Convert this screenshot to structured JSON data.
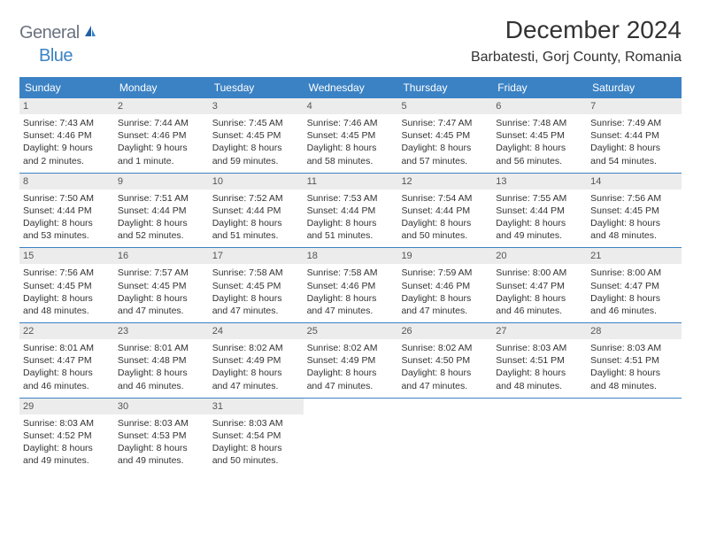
{
  "brand": {
    "part1": "General",
    "part2": "Blue"
  },
  "title": "December 2024",
  "location": "Barbatesti, Gorj County, Romania",
  "colors": {
    "header_bg": "#3b82c4",
    "header_text": "#ffffff",
    "daynum_bg": "#ececec",
    "daynum_text": "#555555",
    "body_text": "#333333",
    "rule": "#3b82c4",
    "brand_gray": "#6b7280",
    "brand_blue": "#3b82c4"
  },
  "day_headers": [
    "Sunday",
    "Monday",
    "Tuesday",
    "Wednesday",
    "Thursday",
    "Friday",
    "Saturday"
  ],
  "weeks": [
    [
      {
        "n": "1",
        "sr": "Sunrise: 7:43 AM",
        "ss": "Sunset: 4:46 PM",
        "d1": "Daylight: 9 hours",
        "d2": "and 2 minutes."
      },
      {
        "n": "2",
        "sr": "Sunrise: 7:44 AM",
        "ss": "Sunset: 4:46 PM",
        "d1": "Daylight: 9 hours",
        "d2": "and 1 minute."
      },
      {
        "n": "3",
        "sr": "Sunrise: 7:45 AM",
        "ss": "Sunset: 4:45 PM",
        "d1": "Daylight: 8 hours",
        "d2": "and 59 minutes."
      },
      {
        "n": "4",
        "sr": "Sunrise: 7:46 AM",
        "ss": "Sunset: 4:45 PM",
        "d1": "Daylight: 8 hours",
        "d2": "and 58 minutes."
      },
      {
        "n": "5",
        "sr": "Sunrise: 7:47 AM",
        "ss": "Sunset: 4:45 PM",
        "d1": "Daylight: 8 hours",
        "d2": "and 57 minutes."
      },
      {
        "n": "6",
        "sr": "Sunrise: 7:48 AM",
        "ss": "Sunset: 4:45 PM",
        "d1": "Daylight: 8 hours",
        "d2": "and 56 minutes."
      },
      {
        "n": "7",
        "sr": "Sunrise: 7:49 AM",
        "ss": "Sunset: 4:44 PM",
        "d1": "Daylight: 8 hours",
        "d2": "and 54 minutes."
      }
    ],
    [
      {
        "n": "8",
        "sr": "Sunrise: 7:50 AM",
        "ss": "Sunset: 4:44 PM",
        "d1": "Daylight: 8 hours",
        "d2": "and 53 minutes."
      },
      {
        "n": "9",
        "sr": "Sunrise: 7:51 AM",
        "ss": "Sunset: 4:44 PM",
        "d1": "Daylight: 8 hours",
        "d2": "and 52 minutes."
      },
      {
        "n": "10",
        "sr": "Sunrise: 7:52 AM",
        "ss": "Sunset: 4:44 PM",
        "d1": "Daylight: 8 hours",
        "d2": "and 51 minutes."
      },
      {
        "n": "11",
        "sr": "Sunrise: 7:53 AM",
        "ss": "Sunset: 4:44 PM",
        "d1": "Daylight: 8 hours",
        "d2": "and 51 minutes."
      },
      {
        "n": "12",
        "sr": "Sunrise: 7:54 AM",
        "ss": "Sunset: 4:44 PM",
        "d1": "Daylight: 8 hours",
        "d2": "and 50 minutes."
      },
      {
        "n": "13",
        "sr": "Sunrise: 7:55 AM",
        "ss": "Sunset: 4:44 PM",
        "d1": "Daylight: 8 hours",
        "d2": "and 49 minutes."
      },
      {
        "n": "14",
        "sr": "Sunrise: 7:56 AM",
        "ss": "Sunset: 4:45 PM",
        "d1": "Daylight: 8 hours",
        "d2": "and 48 minutes."
      }
    ],
    [
      {
        "n": "15",
        "sr": "Sunrise: 7:56 AM",
        "ss": "Sunset: 4:45 PM",
        "d1": "Daylight: 8 hours",
        "d2": "and 48 minutes."
      },
      {
        "n": "16",
        "sr": "Sunrise: 7:57 AM",
        "ss": "Sunset: 4:45 PM",
        "d1": "Daylight: 8 hours",
        "d2": "and 47 minutes."
      },
      {
        "n": "17",
        "sr": "Sunrise: 7:58 AM",
        "ss": "Sunset: 4:45 PM",
        "d1": "Daylight: 8 hours",
        "d2": "and 47 minutes."
      },
      {
        "n": "18",
        "sr": "Sunrise: 7:58 AM",
        "ss": "Sunset: 4:46 PM",
        "d1": "Daylight: 8 hours",
        "d2": "and 47 minutes."
      },
      {
        "n": "19",
        "sr": "Sunrise: 7:59 AM",
        "ss": "Sunset: 4:46 PM",
        "d1": "Daylight: 8 hours",
        "d2": "and 47 minutes."
      },
      {
        "n": "20",
        "sr": "Sunrise: 8:00 AM",
        "ss": "Sunset: 4:47 PM",
        "d1": "Daylight: 8 hours",
        "d2": "and 46 minutes."
      },
      {
        "n": "21",
        "sr": "Sunrise: 8:00 AM",
        "ss": "Sunset: 4:47 PM",
        "d1": "Daylight: 8 hours",
        "d2": "and 46 minutes."
      }
    ],
    [
      {
        "n": "22",
        "sr": "Sunrise: 8:01 AM",
        "ss": "Sunset: 4:47 PM",
        "d1": "Daylight: 8 hours",
        "d2": "and 46 minutes."
      },
      {
        "n": "23",
        "sr": "Sunrise: 8:01 AM",
        "ss": "Sunset: 4:48 PM",
        "d1": "Daylight: 8 hours",
        "d2": "and 46 minutes."
      },
      {
        "n": "24",
        "sr": "Sunrise: 8:02 AM",
        "ss": "Sunset: 4:49 PM",
        "d1": "Daylight: 8 hours",
        "d2": "and 47 minutes."
      },
      {
        "n": "25",
        "sr": "Sunrise: 8:02 AM",
        "ss": "Sunset: 4:49 PM",
        "d1": "Daylight: 8 hours",
        "d2": "and 47 minutes."
      },
      {
        "n": "26",
        "sr": "Sunrise: 8:02 AM",
        "ss": "Sunset: 4:50 PM",
        "d1": "Daylight: 8 hours",
        "d2": "and 47 minutes."
      },
      {
        "n": "27",
        "sr": "Sunrise: 8:03 AM",
        "ss": "Sunset: 4:51 PM",
        "d1": "Daylight: 8 hours",
        "d2": "and 48 minutes."
      },
      {
        "n": "28",
        "sr": "Sunrise: 8:03 AM",
        "ss": "Sunset: 4:51 PM",
        "d1": "Daylight: 8 hours",
        "d2": "and 48 minutes."
      }
    ],
    [
      {
        "n": "29",
        "sr": "Sunrise: 8:03 AM",
        "ss": "Sunset: 4:52 PM",
        "d1": "Daylight: 8 hours",
        "d2": "and 49 minutes."
      },
      {
        "n": "30",
        "sr": "Sunrise: 8:03 AM",
        "ss": "Sunset: 4:53 PM",
        "d1": "Daylight: 8 hours",
        "d2": "and 49 minutes."
      },
      {
        "n": "31",
        "sr": "Sunrise: 8:03 AM",
        "ss": "Sunset: 4:54 PM",
        "d1": "Daylight: 8 hours",
        "d2": "and 50 minutes."
      },
      null,
      null,
      null,
      null
    ]
  ]
}
